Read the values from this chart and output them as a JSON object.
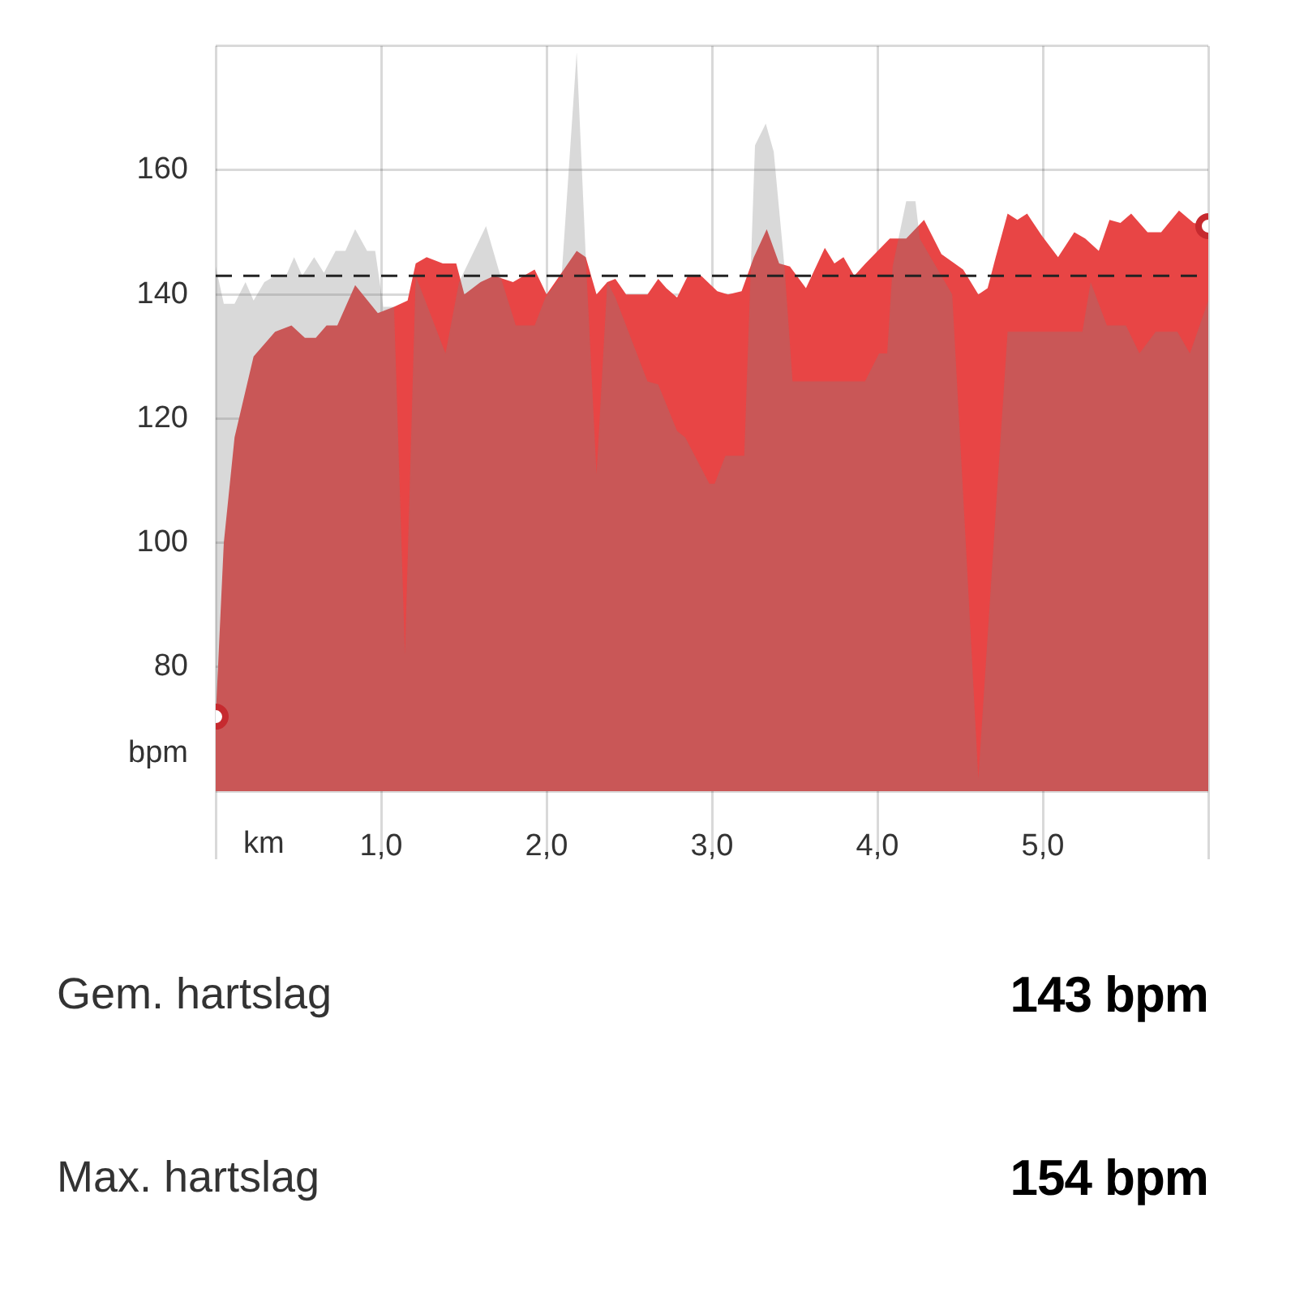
{
  "chart_data": {
    "type": "area",
    "xlabel": "km",
    "ylabel": "bpm",
    "xlim": [
      0,
      6
    ],
    "xticks": [
      {
        "value": 0,
        "label": null
      },
      {
        "value": 1,
        "label": "1,0"
      },
      {
        "value": 2,
        "label": "2,0"
      },
      {
        "value": 3,
        "label": "3,0"
      },
      {
        "value": 4,
        "label": "4,0"
      },
      {
        "value": 5,
        "label": "5,0"
      },
      {
        "value": 6,
        "label": null
      }
    ],
    "ylim": [
      60,
      180
    ],
    "yticks": [
      {
        "value": 60,
        "label": null
      },
      80,
      100,
      120,
      140,
      160,
      {
        "value": 180,
        "label": null
      }
    ],
    "grid": true,
    "legend": false,
    "ref_lines": [
      {
        "axis": "y",
        "value": 143,
        "color": "#222222",
        "line_style": "dashed"
      }
    ],
    "series": [
      {
        "color": "#e84545",
        "x": [
          0,
          0.049,
          0.114,
          0.229,
          0.359,
          0.458,
          0.539,
          0.605,
          0.67,
          0.735,
          0.843,
          0.98,
          1.078,
          1.16,
          1.209,
          1.275,
          1.373,
          1.454,
          1.503,
          1.601,
          1.683,
          1.797,
          1.928,
          2.0,
          2.091,
          2.182,
          2.237,
          2.302,
          2.367,
          2.416,
          2.481,
          2.61,
          2.675,
          2.724,
          2.789,
          2.854,
          2.935,
          3.032,
          3.097,
          3.179,
          3.253,
          3.331,
          3.406,
          3.471,
          3.568,
          3.682,
          3.74,
          3.795,
          3.86,
          3.928,
          4.075,
          4.174,
          4.282,
          4.387,
          4.518,
          4.61,
          4.666,
          4.715,
          4.787,
          4.846,
          4.905,
          4.993,
          5.092,
          5.19,
          5.256,
          5.338,
          5.403,
          5.469,
          5.534,
          5.633,
          5.715,
          5.823,
          5.911,
          6.0
        ],
        "values": [
          72,
          100,
          117,
          130,
          134,
          135,
          133,
          133,
          135,
          135,
          141.5,
          137,
          138,
          139,
          145,
          146,
          145,
          145,
          140,
          142,
          143,
          142,
          144,
          140,
          143.5,
          147,
          146,
          140,
          142,
          142.5,
          140,
          140,
          142.5,
          141,
          139.5,
          143,
          143,
          140.5,
          140,
          140.5,
          146,
          150.5,
          145,
          144.5,
          141,
          147.5,
          145,
          146,
          143,
          145,
          149,
          149,
          152,
          146.5,
          144,
          140,
          141,
          146,
          153,
          152,
          153,
          149.5,
          146,
          150,
          149,
          147,
          152,
          151.5,
          153,
          150,
          150,
          153.5,
          151.5,
          151
        ]
      },
      {
        "color": "#808080",
        "x": [
          0,
          0.049,
          0.114,
          0.18,
          0.229,
          0.294,
          0.359,
          0.425,
          0.474,
          0.523,
          0.595,
          0.654,
          0.725,
          0.784,
          0.843,
          0.915,
          0.964,
          1.013,
          1.078,
          1.144,
          1.209,
          1.389,
          1.471,
          1.634,
          1.732,
          1.814,
          1.928,
          1.993,
          2.091,
          2.182,
          2.237,
          2.302,
          2.367,
          2.416,
          2.61,
          2.675,
          2.789,
          2.838,
          2.984,
          3.016,
          3.081,
          3.195,
          3.26,
          3.325,
          3.373,
          3.438,
          3.487,
          3.925,
          4.01,
          4.059,
          4.092,
          4.174,
          4.23,
          4.256,
          4.354,
          4.452,
          4.534,
          4.61,
          4.715,
          4.787,
          5.239,
          5.289,
          5.387,
          5.502,
          5.584,
          5.682,
          5.813,
          5.889,
          6.0
        ],
        "values": [
          144.5,
          138.5,
          138.5,
          142,
          139,
          142,
          143,
          143,
          146,
          143,
          146,
          143.5,
          147,
          147,
          150.5,
          147,
          147,
          138,
          138,
          82,
          143,
          130.5,
          142,
          151,
          142,
          135,
          135,
          139.5,
          143,
          179,
          146,
          111,
          142,
          139.5,
          126,
          125.5,
          118,
          117,
          109.5,
          109.5,
          114,
          114,
          164,
          167.5,
          163,
          144.5,
          126,
          126,
          130.5,
          130.5,
          144.5,
          155,
          155,
          149,
          144.5,
          140,
          100,
          62,
          105,
          134,
          134,
          142,
          135,
          135,
          130.5,
          134,
          134,
          130.5,
          139
        ]
      },
      {
        "type": "scatter",
        "color": "#c62a2f",
        "x": [
          0,
          6
        ],
        "values": [
          72,
          151
        ]
      }
    ],
    "annotations": [
      "Gem. hartslag",
      "143 bpm",
      "Max. hartslag",
      "154 bpm"
    ]
  }
}
